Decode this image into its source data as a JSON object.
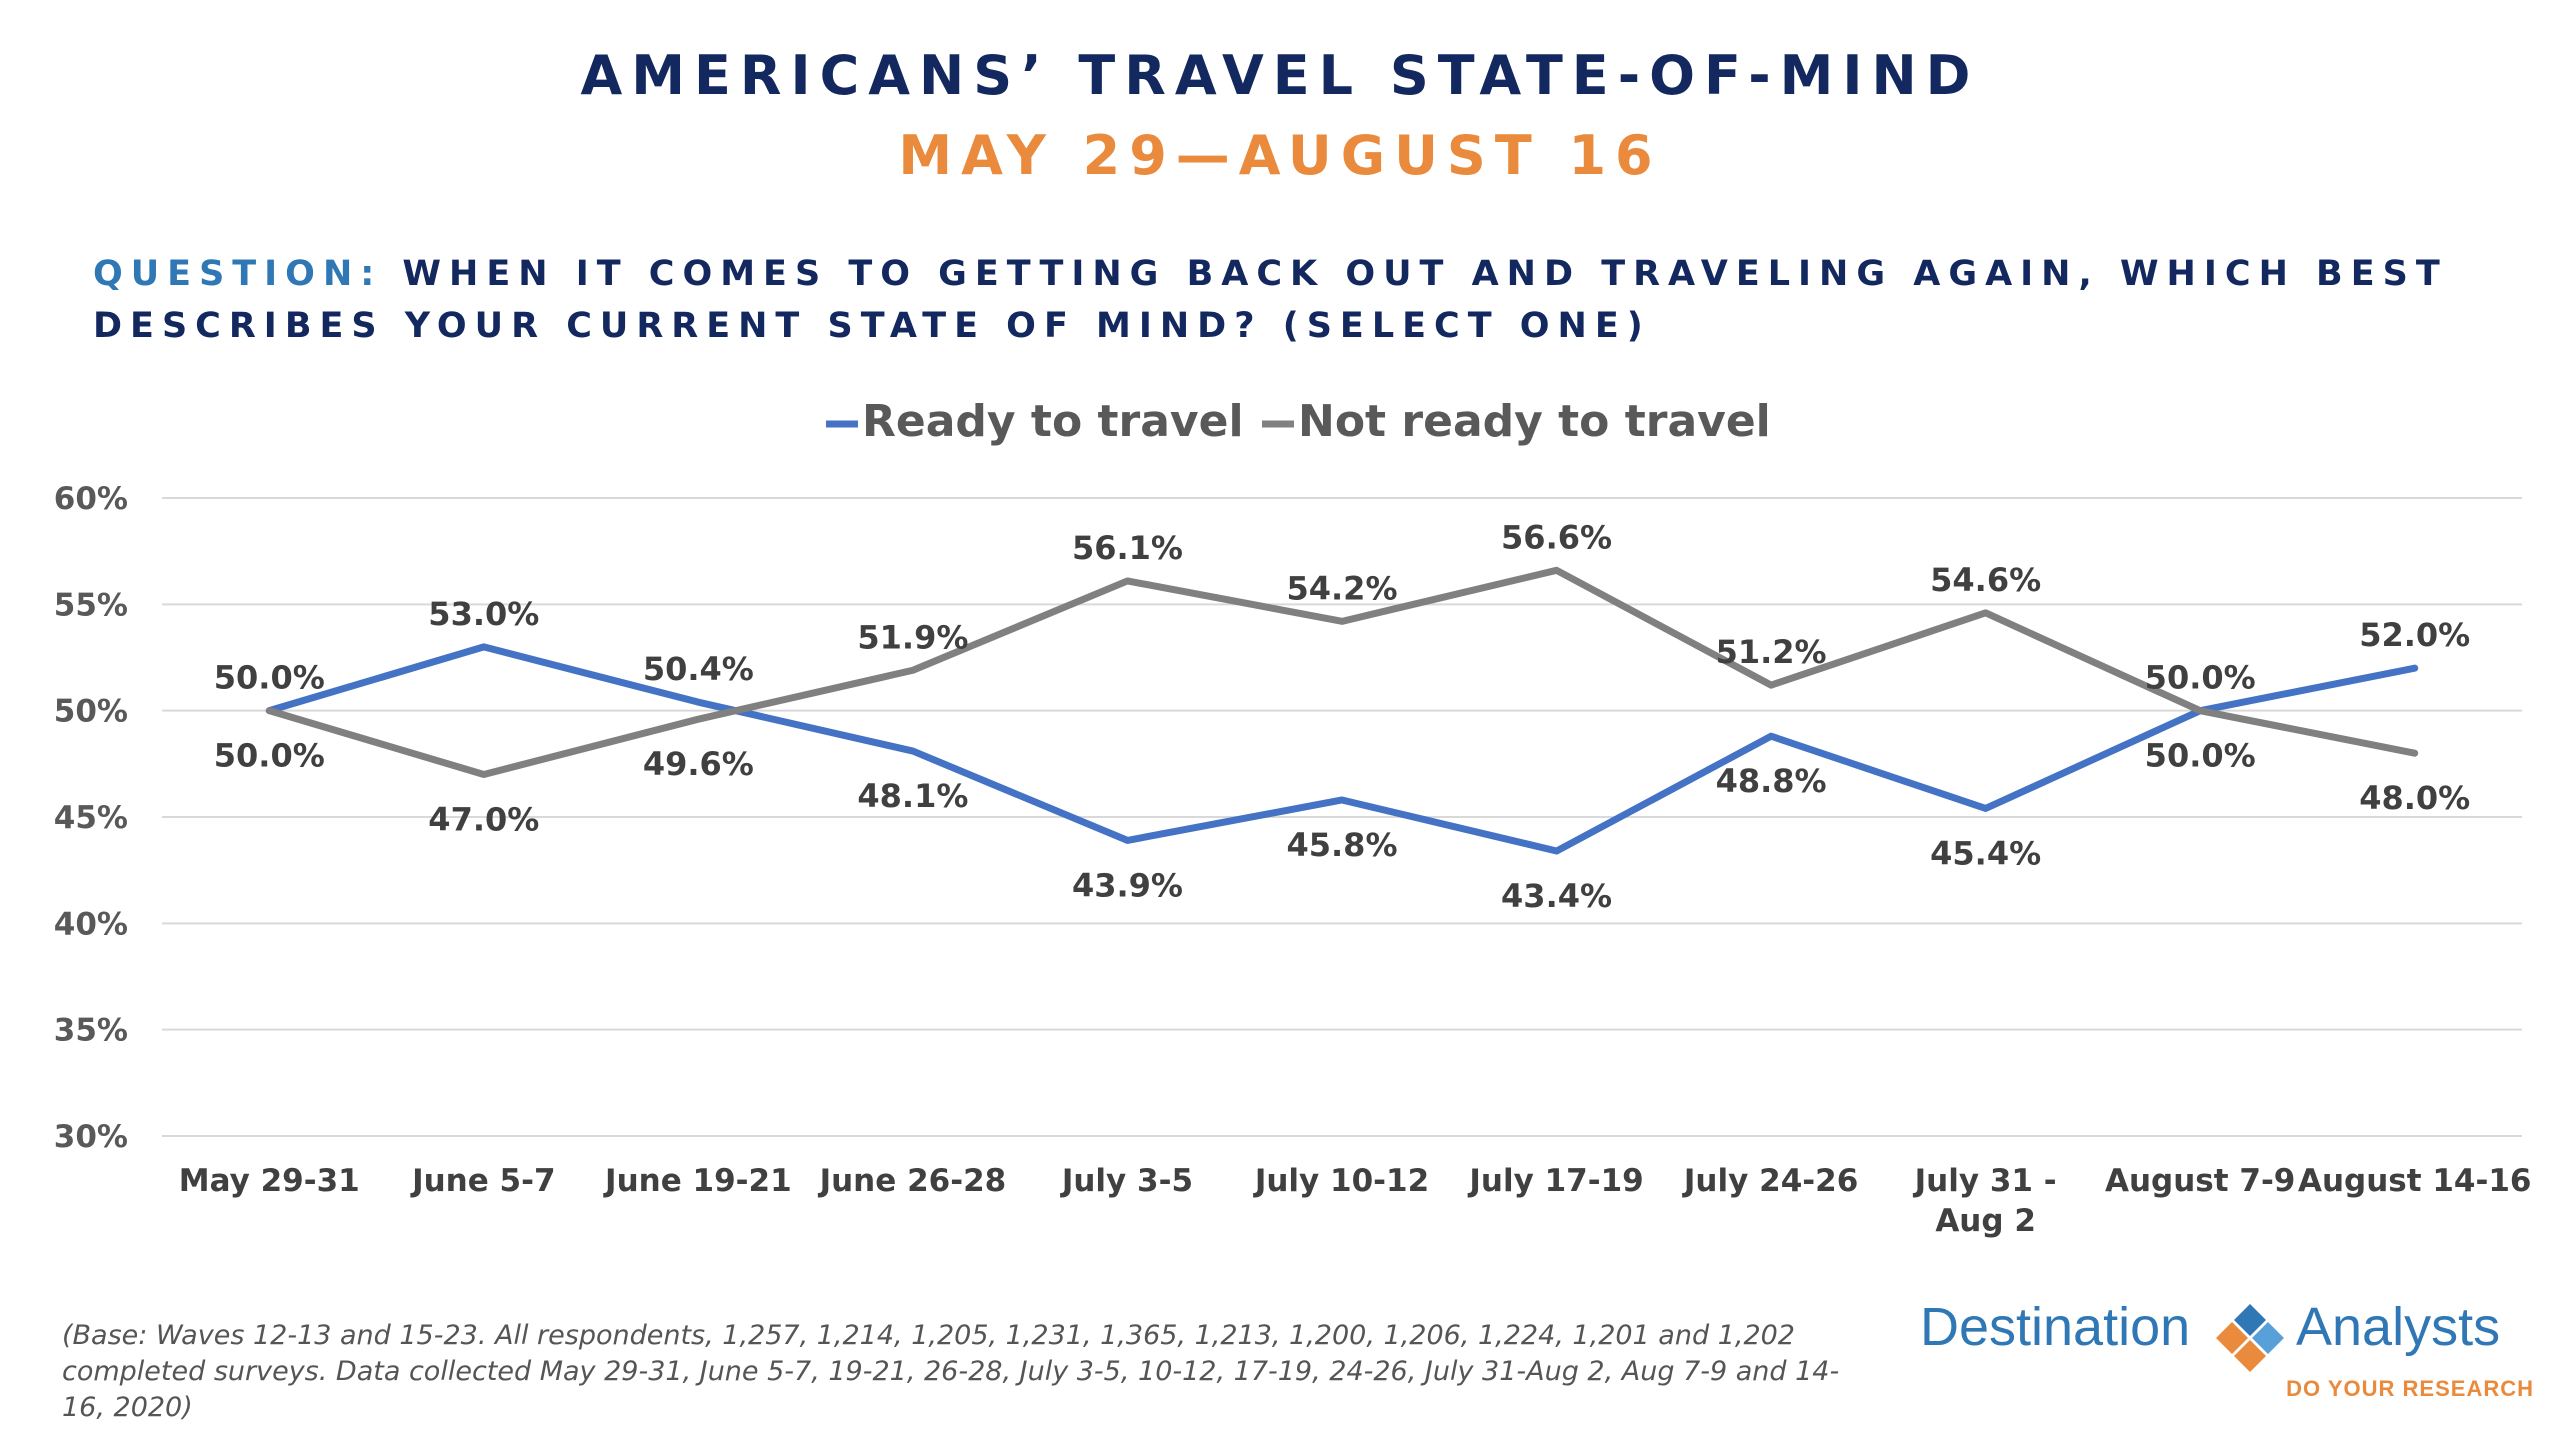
{
  "header": {
    "title": "AMERICANS’ TRAVEL STATE-OF-MIND",
    "subtitle": "MAY 29—AUGUST 16"
  },
  "question": {
    "label": "QUESTION:",
    "text": "WHEN IT COMES TO GETTING BACK OUT AND TRAVELING AGAIN, WHICH BEST DESCRIBES YOUR CURRENT STATE OF MIND? (SELECT ONE)"
  },
  "chart_data": {
    "type": "line",
    "categories": [
      "May 29-31",
      "June 5-7",
      "June 19-21",
      "June 26-28",
      "July 3-5",
      "July 10-12",
      "July 17-19",
      "July 24-26",
      "July 31 - Aug 2",
      "August 7-9",
      "August 14-16"
    ],
    "series": [
      {
        "name": "Ready to travel",
        "color": "#4472c4",
        "values": [
          50.0,
          53.0,
          50.4,
          48.1,
          43.9,
          45.8,
          43.4,
          48.8,
          45.4,
          50.0,
          52.0
        ]
      },
      {
        "name": "Not ready to travel",
        "color": "#808080",
        "values": [
          50.0,
          47.0,
          49.6,
          51.9,
          56.1,
          54.2,
          56.6,
          51.2,
          54.6,
          50.0,
          48.0
        ]
      }
    ],
    "ylim": [
      30,
      60
    ],
    "yticks": [
      30,
      35,
      40,
      45,
      50,
      55,
      60
    ],
    "grid": true,
    "legend": "top"
  },
  "footnote": "(Base: Waves 12-13 and 15-23. All respondents, 1,257, 1,214, 1,205, 1,231, 1,365, 1,213, 1,200, 1,206, 1,224, 1,201 and 1,202 completed surveys. Data collected May 29-31, June 5-7, 19-21, 26-28, July 3-5, 10-12, 17-19, 24-26, July 31-Aug 2, Aug 7-9 and 14-16, 2020)",
  "logo": {
    "word1": "Destination",
    "word2": "Analysts",
    "tagline": "DO YOUR RESEARCH",
    "colors": {
      "blue": "#2f78b5",
      "orange": "#e98a3c"
    },
    "icon": "diamond-logo-icon"
  }
}
